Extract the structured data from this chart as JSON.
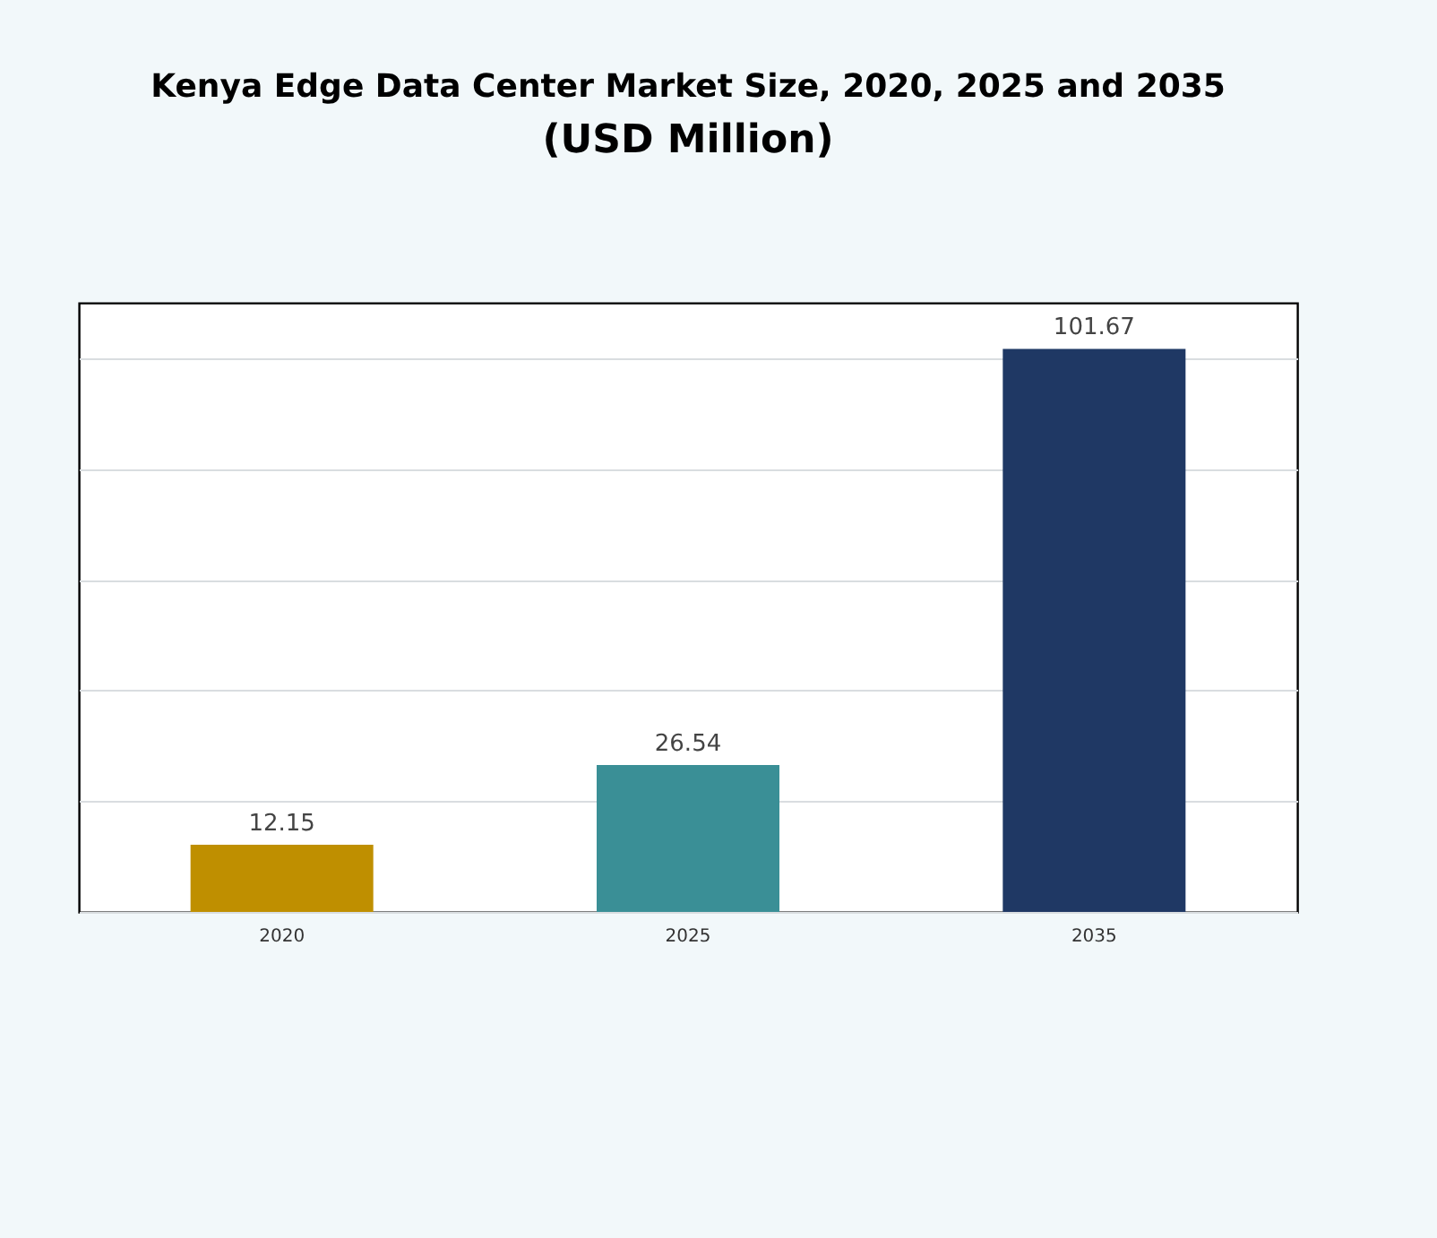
{
  "chart_data": {
    "type": "bar",
    "title": "Kenya Edge Data Center Market Size, 2020, 2025 and 2035",
    "subtitle": "(USD Million)",
    "categories": [
      "2020",
      "2025",
      "2035"
    ],
    "values": [
      12.15,
      26.54,
      101.67
    ],
    "colors": [
      "#bf8f00",
      "#3a8f96",
      "#1f3864"
    ],
    "data_labels": true,
    "grid": "y",
    "tick_labels": "x"
  }
}
